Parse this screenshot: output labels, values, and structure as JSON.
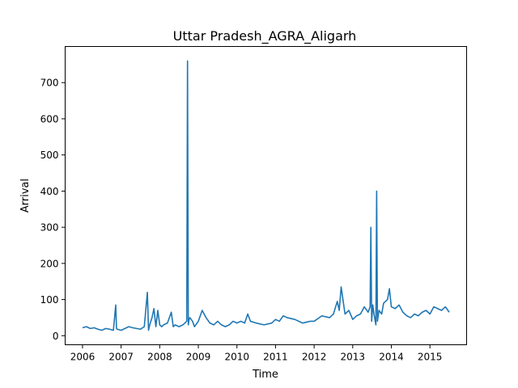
{
  "chart_data": {
    "type": "line",
    "title": "Uttar Pradesh_AGRA_Aligarh",
    "xlabel": "Time",
    "ylabel": "Arrival",
    "xlim": [
      2005.55,
      2015.95
    ],
    "ylim": [
      -25,
      800
    ],
    "x_ticks": [
      2006,
      2007,
      2008,
      2009,
      2010,
      2011,
      2012,
      2013,
      2014,
      2015
    ],
    "x_tick_labels": [
      "2006",
      "2007",
      "2008",
      "2009",
      "2010",
      "2011",
      "2012",
      "2013",
      "2014",
      "2015"
    ],
    "y_ticks": [
      0,
      100,
      200,
      300,
      400,
      500,
      600,
      700
    ],
    "y_tick_labels": [
      "0",
      "100",
      "200",
      "300",
      "400",
      "500",
      "600",
      "700"
    ],
    "grid": false,
    "line_color": "#1f77b4",
    "series": [
      {
        "x": [
          2006.0,
          2006.1,
          2006.2,
          2006.3,
          2006.4,
          2006.5,
          2006.6,
          2006.7,
          2006.8,
          2006.86,
          2006.88,
          2006.9,
          2007.0,
          2007.1,
          2007.2,
          2007.3,
          2007.4,
          2007.5,
          2007.6,
          2007.68,
          2007.71,
          2007.74,
          2007.8,
          2007.85,
          2007.9,
          2007.95,
          2008.0,
          2008.05,
          2008.1,
          2008.2,
          2008.3,
          2008.35,
          2008.4,
          2008.5,
          2008.6,
          2008.7,
          2008.72,
          2008.74,
          2008.76,
          2008.78,
          2008.85,
          2008.9,
          2009.0,
          2009.1,
          2009.2,
          2009.3,
          2009.4,
          2009.5,
          2009.6,
          2009.7,
          2009.8,
          2009.9,
          2010.0,
          2010.1,
          2010.2,
          2010.28,
          2010.35,
          2010.5,
          2010.7,
          2010.9,
          2011.0,
          2011.1,
          2011.2,
          2011.3,
          2011.5,
          2011.7,
          2011.9,
          2012.0,
          2012.2,
          2012.4,
          2012.5,
          2012.6,
          2012.65,
          2012.7,
          2012.8,
          2012.9,
          2013.0,
          2013.1,
          2013.2,
          2013.3,
          2013.4,
          2013.45,
          2013.47,
          2013.49,
          2013.52,
          2013.55,
          2013.6,
          2013.62,
          2013.64,
          2013.68,
          2013.75,
          2013.8,
          2013.9,
          2013.95,
          2014.0,
          2014.1,
          2014.2,
          2014.3,
          2014.4,
          2014.5,
          2014.6,
          2014.7,
          2014.8,
          2014.9,
          2015.0,
          2015.1,
          2015.2,
          2015.3,
          2015.4,
          2015.5
        ],
        "y": [
          22,
          25,
          20,
          22,
          18,
          15,
          20,
          18,
          15,
          85,
          20,
          18,
          15,
          20,
          25,
          22,
          20,
          18,
          25,
          120,
          15,
          30,
          50,
          75,
          25,
          70,
          30,
          25,
          30,
          35,
          65,
          25,
          30,
          25,
          30,
          40,
          760,
          30,
          45,
          50,
          40,
          25,
          40,
          70,
          50,
          35,
          30,
          40,
          30,
          25,
          30,
          40,
          35,
          40,
          35,
          60,
          40,
          35,
          30,
          35,
          45,
          40,
          55,
          50,
          45,
          35,
          40,
          40,
          55,
          50,
          60,
          95,
          70,
          135,
          60,
          70,
          45,
          55,
          60,
          80,
          65,
          80,
          300,
          40,
          85,
          60,
          30,
          400,
          40,
          70,
          60,
          90,
          100,
          130,
          80,
          75,
          85,
          65,
          55,
          50,
          60,
          55,
          65,
          70,
          60,
          80,
          75,
          70,
          80,
          65
        ]
      }
    ]
  }
}
